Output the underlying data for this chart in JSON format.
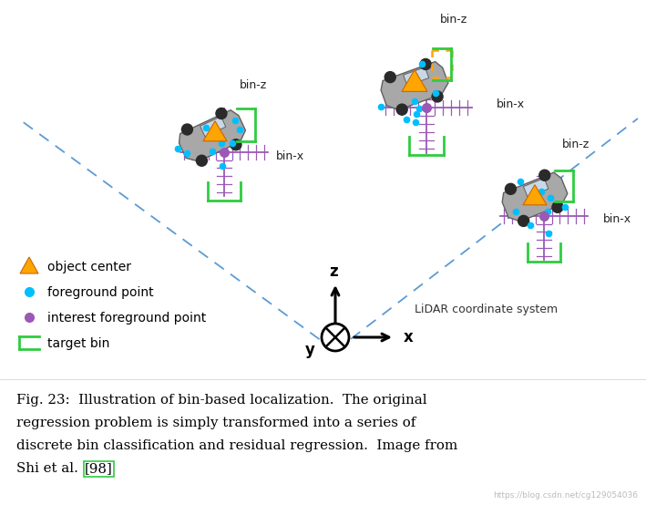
{
  "bg_color": "#ffffff",
  "fig_width": 7.09,
  "fig_height": 5.54,
  "dpi": 100,
  "caption_line1": "Fig. 23:  Illustration of bin-based localization.  The original",
  "caption_line2": "regression problem is simply transformed into a series of",
  "caption_line3": "discrete bin classification and residual regression.  Image from",
  "caption_line4": "Shi et al. [98]",
  "watermark": "https://blog.csdn.net/cg129054036",
  "dashed_line_color": "#5B9BD5",
  "bin_z_color": "#2ECC40",
  "cross_color": "#9B59B6",
  "cyan_color": "#00BFFF",
  "purple_color": "#9B59B6",
  "orange_color": "#FFA500",
  "dotted_color": "#FFA500"
}
